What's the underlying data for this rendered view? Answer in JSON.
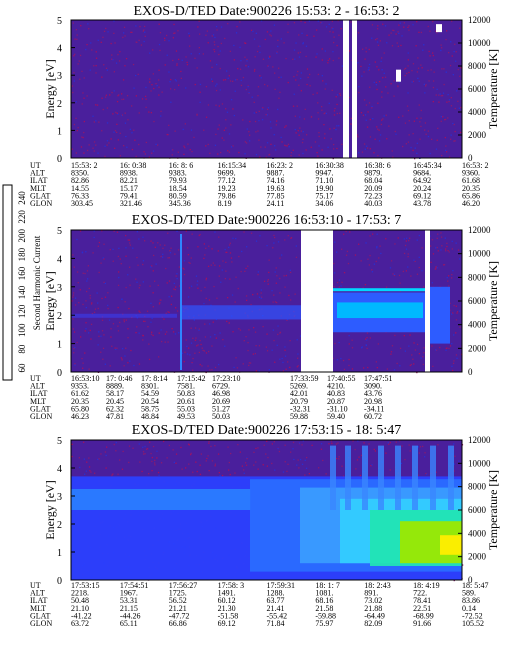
{
  "chart_data": [
    {
      "type": "heatmap",
      "title": "EXOS-D/TED   Date:900226  15:53: 2 - 16:53: 2",
      "ylabel": "Energy [eV]",
      "ylabel_right": "Temperature [K]",
      "ylim": [
        0,
        5
      ],
      "ylim_right": [
        0,
        12000
      ],
      "yticks": [
        "0",
        "1",
        "2",
        "3",
        "4",
        "5"
      ],
      "yticks_right": [
        "0",
        "2000",
        "4000",
        "6000",
        "8000",
        "10000",
        "12000"
      ],
      "ephemeris_labels": [
        "UT",
        "ALT",
        "ILAT",
        "MLT",
        "GLAT",
        "GLON"
      ],
      "ephemeris": [
        [
          "15:53: 2",
          "8350.",
          "82.86",
          "14.55",
          "76.33",
          "303.45"
        ],
        [
          "16: 0:38",
          "8938.",
          "82.21",
          "15.17",
          "79.41",
          "321.46"
        ],
        [
          "16: 8: 6",
          "9383.",
          "79.93",
          "18.54",
          "80.59",
          "345.36"
        ],
        [
          "16:15:34",
          "9699.",
          "77.12",
          "19.23",
          "79.86",
          "8.19"
        ],
        [
          "16:23: 2",
          "9887.",
          "74.16",
          "19.63",
          "77.85",
          "24.11"
        ],
        [
          "16:30:38",
          "9947.",
          "71.10",
          "19.90",
          "75.17",
          "34.06"
        ],
        [
          "16:38: 6",
          "9879.",
          "68.04",
          "20.09",
          "72.23",
          "40.03"
        ],
        [
          "16:45:34",
          "9684.",
          "64.92",
          "20.24",
          "69.12",
          "43.78"
        ],
        [
          "16:53: 2",
          "9360.",
          "61.68",
          "20.35",
          "65.86",
          "46.20"
        ]
      ]
    },
    {
      "type": "heatmap",
      "title": "EXOS-D/TED   Date:900226  16:53:10 - 17:53: 7",
      "ylabel": "Energy [eV]",
      "ylabel_right": "Temperature [K]",
      "ylim": [
        0,
        5
      ],
      "ylim_right": [
        0,
        12000
      ],
      "yticks": [
        "0",
        "1",
        "2",
        "3",
        "4",
        "5"
      ],
      "yticks_right": [
        "0",
        "2000",
        "4000",
        "6000",
        "8000",
        "10000",
        "12000"
      ],
      "ephemeris_labels": [
        "UT",
        "ALT",
        "ILAT",
        "MLT",
        "GLAT",
        "GLON"
      ],
      "ephemeris": [
        [
          "16:53:10",
          "9353.",
          "61.62",
          "20.35",
          "65.80",
          "46.23"
        ],
        [
          "17: 0:46",
          "8889.",
          "58.17",
          "20.45",
          "62.32",
          "47.81"
        ],
        [
          "17: 8:14",
          "8301.",
          "54.59",
          "20.54",
          "58.75",
          "48.84"
        ],
        [
          "17:15:42",
          "7581.",
          "50.83",
          "20.61",
          "55.03",
          "49.53"
        ],
        [
          "17:23:10",
          "6729.",
          "46.98",
          "20.69",
          "51.27",
          "50.03"
        ],
        [
          "17:33:59",
          "5269.",
          "42.01",
          "20.79",
          "-32.31",
          "59.88"
        ],
        [
          "17:40:55",
          "4210.",
          "40.83",
          "20.87",
          "-31.10",
          "59.40"
        ],
        [
          "17:47:51",
          "3090.",
          "43.76",
          "20.98",
          "-34.11",
          "60.72"
        ]
      ]
    },
    {
      "type": "heatmap",
      "title": "EXOS-D/TED   Date:900226  17:53:15 - 18: 5:47",
      "ylabel": "Energy [eV]",
      "ylabel_right": "Temperature [K]",
      "ylim": [
        0,
        5
      ],
      "ylim_right": [
        0,
        12000
      ],
      "yticks": [
        "0",
        "1",
        "2",
        "3",
        "4",
        "5"
      ],
      "yticks_right": [
        "0",
        "2000",
        "4000",
        "6000",
        "8000",
        "10000",
        "12000"
      ],
      "ephemeris_labels": [
        "UT",
        "ALT",
        "ILAT",
        "MLT",
        "GLAT",
        "GLON"
      ],
      "ephemeris": [
        [
          "17:53:15",
          "2218.",
          "50.48",
          "21.10",
          "-41.22",
          "63.72"
        ],
        [
          "17:54:51",
          "1967.",
          "53.31",
          "21.15",
          "-44.26",
          "65.11"
        ],
        [
          "17:56:27",
          "1725.",
          "56.52",
          "21.21",
          "-47.72",
          "66.86"
        ],
        [
          "17:58: 3",
          "1491.",
          "60.12",
          "21.30",
          "-51.58",
          "69.12"
        ],
        [
          "17:59:31",
          "1288.",
          "63.77",
          "21.41",
          "-55.42",
          "71.84"
        ],
        [
          "18: 1: 7",
          "1081.",
          "68.16",
          "21.58",
          "-59.88",
          "75.97"
        ],
        [
          "18: 2:43",
          "891.",
          "73.02",
          "21.88",
          "-64.49",
          "82.09"
        ],
        [
          "18: 4:19",
          "722.",
          "78.41",
          "22.51",
          "-68.99",
          "91.66"
        ],
        [
          "18: 5:47",
          "589.",
          "83.86",
          "0.14",
          "-72.52",
          "105.52"
        ]
      ]
    }
  ],
  "colorbar": {
    "label": "Second Harmonic Current",
    "ticks": [
      "60",
      "80",
      "100",
      "120",
      "140",
      "160",
      "180",
      "200",
      "220",
      "240"
    ],
    "colors": [
      "#000000",
      "#7a0078",
      "#2a00a8",
      "#1a2ad0",
      "#2a66ff",
      "#00c2ff",
      "#00e2a0",
      "#22e000",
      "#aaf000",
      "#ffff00",
      "#ff9a00",
      "#ff0000"
    ]
  }
}
